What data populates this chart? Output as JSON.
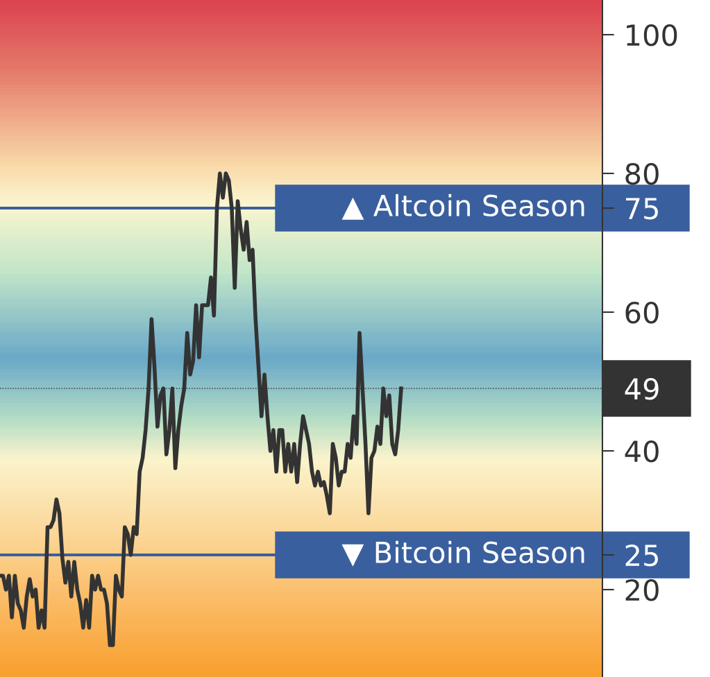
{
  "chart_data": {
    "type": "line",
    "categories": [
      null,
      null,
      null,
      null,
      null,
      null,
      null,
      null,
      null,
      null,
      null,
      null,
      null,
      null,
      null,
      null,
      null,
      null,
      null,
      null,
      null,
      null,
      null,
      null,
      null,
      null,
      null,
      null,
      null,
      null,
      null,
      null,
      null,
      null,
      null,
      null,
      null,
      null,
      null,
      null,
      null,
      null,
      null,
      null,
      null,
      null,
      null,
      null,
      null,
      null,
      null,
      null,
      null,
      null,
      null,
      null,
      null,
      null,
      null,
      null,
      null,
      null,
      null,
      null,
      null,
      null,
      null,
      null,
      null,
      null,
      null,
      null,
      null,
      null,
      null,
      null,
      null,
      null,
      null,
      null,
      null,
      null,
      null,
      null,
      null,
      null,
      null,
      null,
      null,
      null,
      null,
      null,
      null,
      null,
      null,
      null,
      null,
      null,
      null,
      null,
      null,
      null,
      null,
      null,
      null,
      null,
      null,
      null,
      null,
      null,
      null,
      null,
      null,
      null,
      null,
      null,
      null,
      null,
      null,
      null,
      null,
      null,
      null,
      null,
      null,
      null,
      null,
      null,
      null,
      null,
      null,
      null,
      null,
      null,
      null,
      null
    ],
    "series": [
      {
        "color": "#333333",
        "values": [
          22,
          22,
          20,
          22,
          16,
          22,
          18,
          17,
          14.5,
          19,
          21.5,
          19,
          20,
          14.5,
          17,
          14.5,
          29,
          29,
          30,
          33,
          31,
          24.5,
          21,
          24,
          19,
          24,
          20,
          18,
          14.5,
          18.5,
          14.5,
          22,
          20,
          22,
          20,
          20,
          18,
          12,
          12,
          22,
          20,
          19,
          29,
          28,
          25,
          29,
          28,
          37,
          39,
          43,
          49,
          59,
          52,
          43.5,
          48,
          49,
          39.5,
          43,
          49,
          37.5,
          43,
          46.5,
          49,
          57,
          51,
          53,
          61,
          53.5,
          61,
          61,
          61,
          65,
          59.5,
          75,
          80,
          76.5,
          80,
          79,
          75,
          63.5,
          76,
          72,
          69,
          73,
          67.5,
          69,
          59,
          52,
          45,
          51,
          45,
          40,
          43,
          37,
          43,
          43,
          37,
          41,
          37,
          41,
          35.5,
          41,
          45,
          43,
          41,
          37,
          35,
          37,
          35,
          35.5,
          33.5,
          31,
          41,
          39,
          35,
          37,
          37,
          41,
          39,
          45,
          41,
          57,
          49,
          41,
          31,
          39,
          40,
          43.5,
          41,
          49,
          45,
          48,
          41,
          39.5,
          43,
          49
        ]
      }
    ],
    "ylim": [
      7.4,
      105
    ],
    "yticks": [
      20,
      25,
      40,
      49,
      60,
      75,
      80,
      100
    ],
    "grid": false,
    "legend": false,
    "line_style": "solid",
    "marker": "none",
    "tick_labels": "y",
    "ref_lines": [
      {
        "axis": "y",
        "value": 75,
        "label": "▲ Altcoin Season",
        "color": "#3a5f9e",
        "line_style": "solid"
      },
      {
        "axis": "y",
        "value": 25,
        "label": "▼ Bitcoin Season",
        "color": "#3a5f9e",
        "line_style": "solid"
      },
      {
        "axis": "y",
        "value": 49,
        "color": "#333333",
        "line_style": "dotted"
      }
    ]
  }
}
